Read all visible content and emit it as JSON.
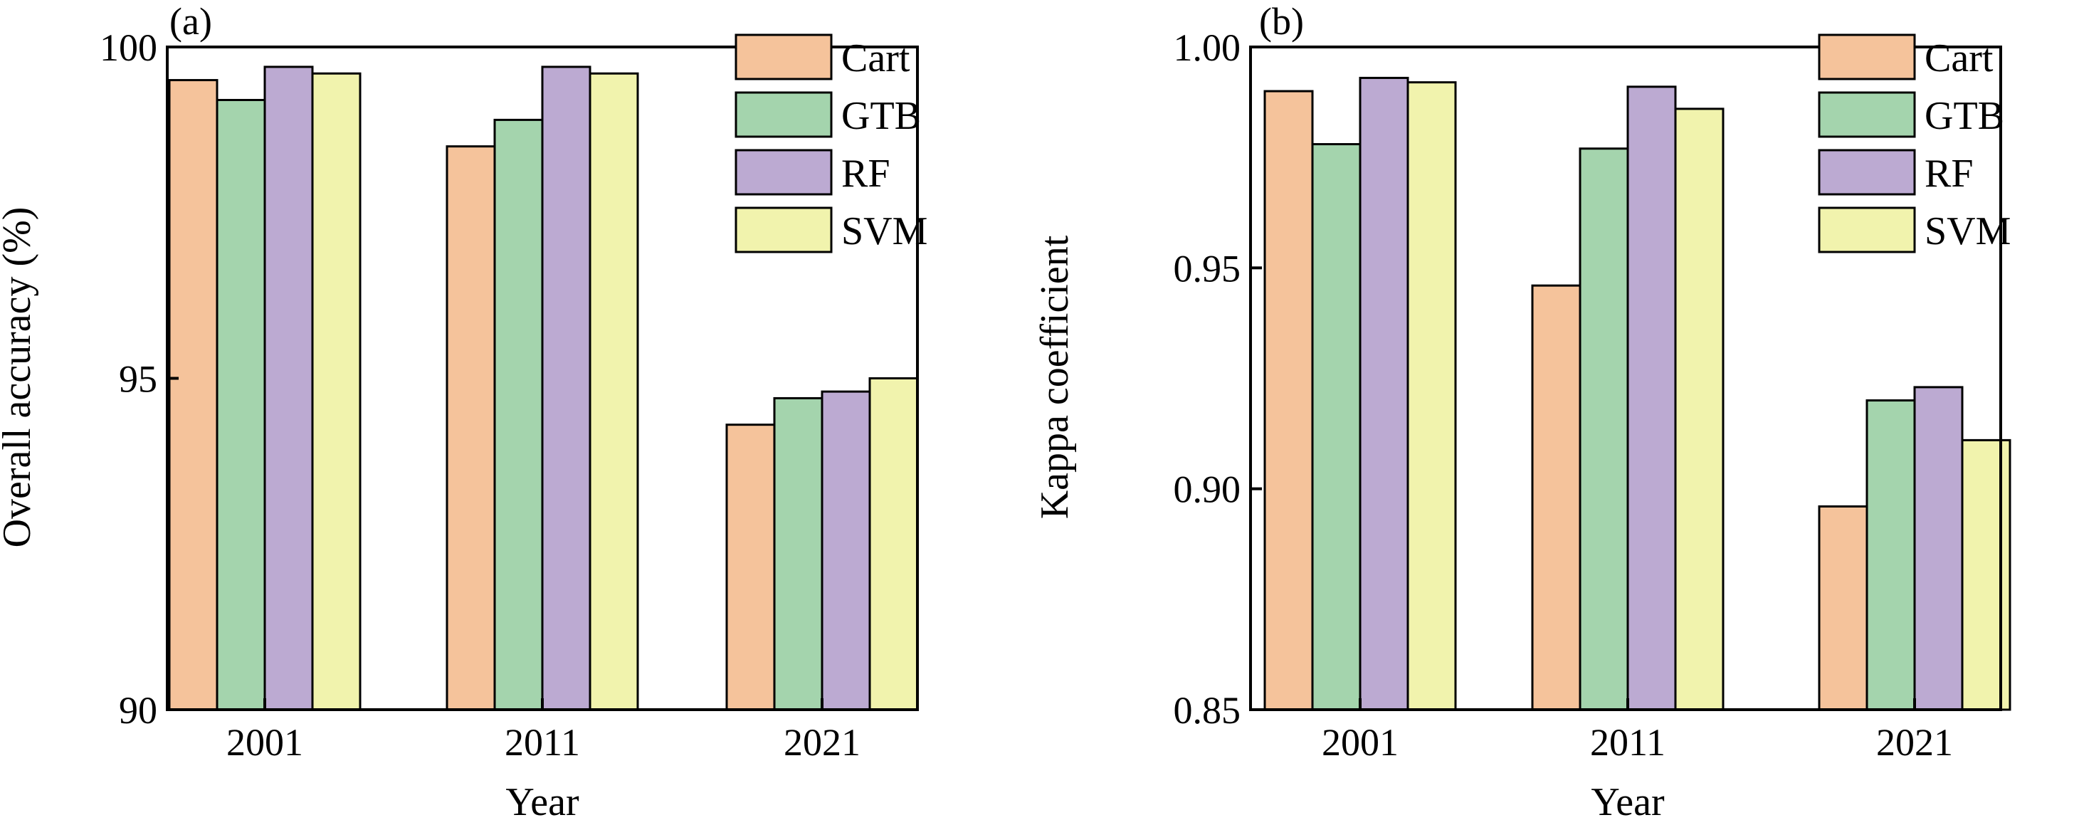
{
  "chart_data": [
    {
      "panel_label": "(a)",
      "type": "bar",
      "xlabel": "Year",
      "ylabel": "Overall accuracy (%)",
      "ylim": [
        90,
        100
      ],
      "yticks": [
        "90",
        "95",
        "100"
      ],
      "categories": [
        "2001",
        "2011",
        "2021"
      ],
      "legend_position": "top-right",
      "series": [
        {
          "name": "Cart",
          "color": "#f5c39b",
          "values": [
            99.5,
            98.5,
            94.3
          ]
        },
        {
          "name": "GTB",
          "color": "#a4d4ad",
          "values": [
            99.2,
            98.9,
            94.7
          ]
        },
        {
          "name": "RF",
          "color": "#bcaad2",
          "values": [
            99.7,
            99.7,
            94.8
          ]
        },
        {
          "name": "SVM",
          "color": "#f1f3ad",
          "values": [
            99.6,
            99.6,
            95.0
          ]
        }
      ]
    },
    {
      "panel_label": "(b)",
      "type": "bar",
      "xlabel": "Year",
      "ylabel": "Kappa coefficient",
      "ylim": [
        0.85,
        1.0
      ],
      "yticks": [
        "0.85",
        "0.90",
        "0.95",
        "1.00"
      ],
      "categories": [
        "2001",
        "2011",
        "2021"
      ],
      "legend_position": "top-right",
      "series": [
        {
          "name": "Cart",
          "color": "#f5c39b",
          "values": [
            0.99,
            0.946,
            0.896
          ]
        },
        {
          "name": "GTB",
          "color": "#a4d4ad",
          "values": [
            0.978,
            0.977,
            0.92
          ]
        },
        {
          "name": "RF",
          "color": "#bcaad2",
          "values": [
            0.993,
            0.991,
            0.923
          ]
        },
        {
          "name": "SVM",
          "color": "#f1f3ad",
          "values": [
            0.992,
            0.986,
            0.911
          ]
        }
      ]
    }
  ]
}
